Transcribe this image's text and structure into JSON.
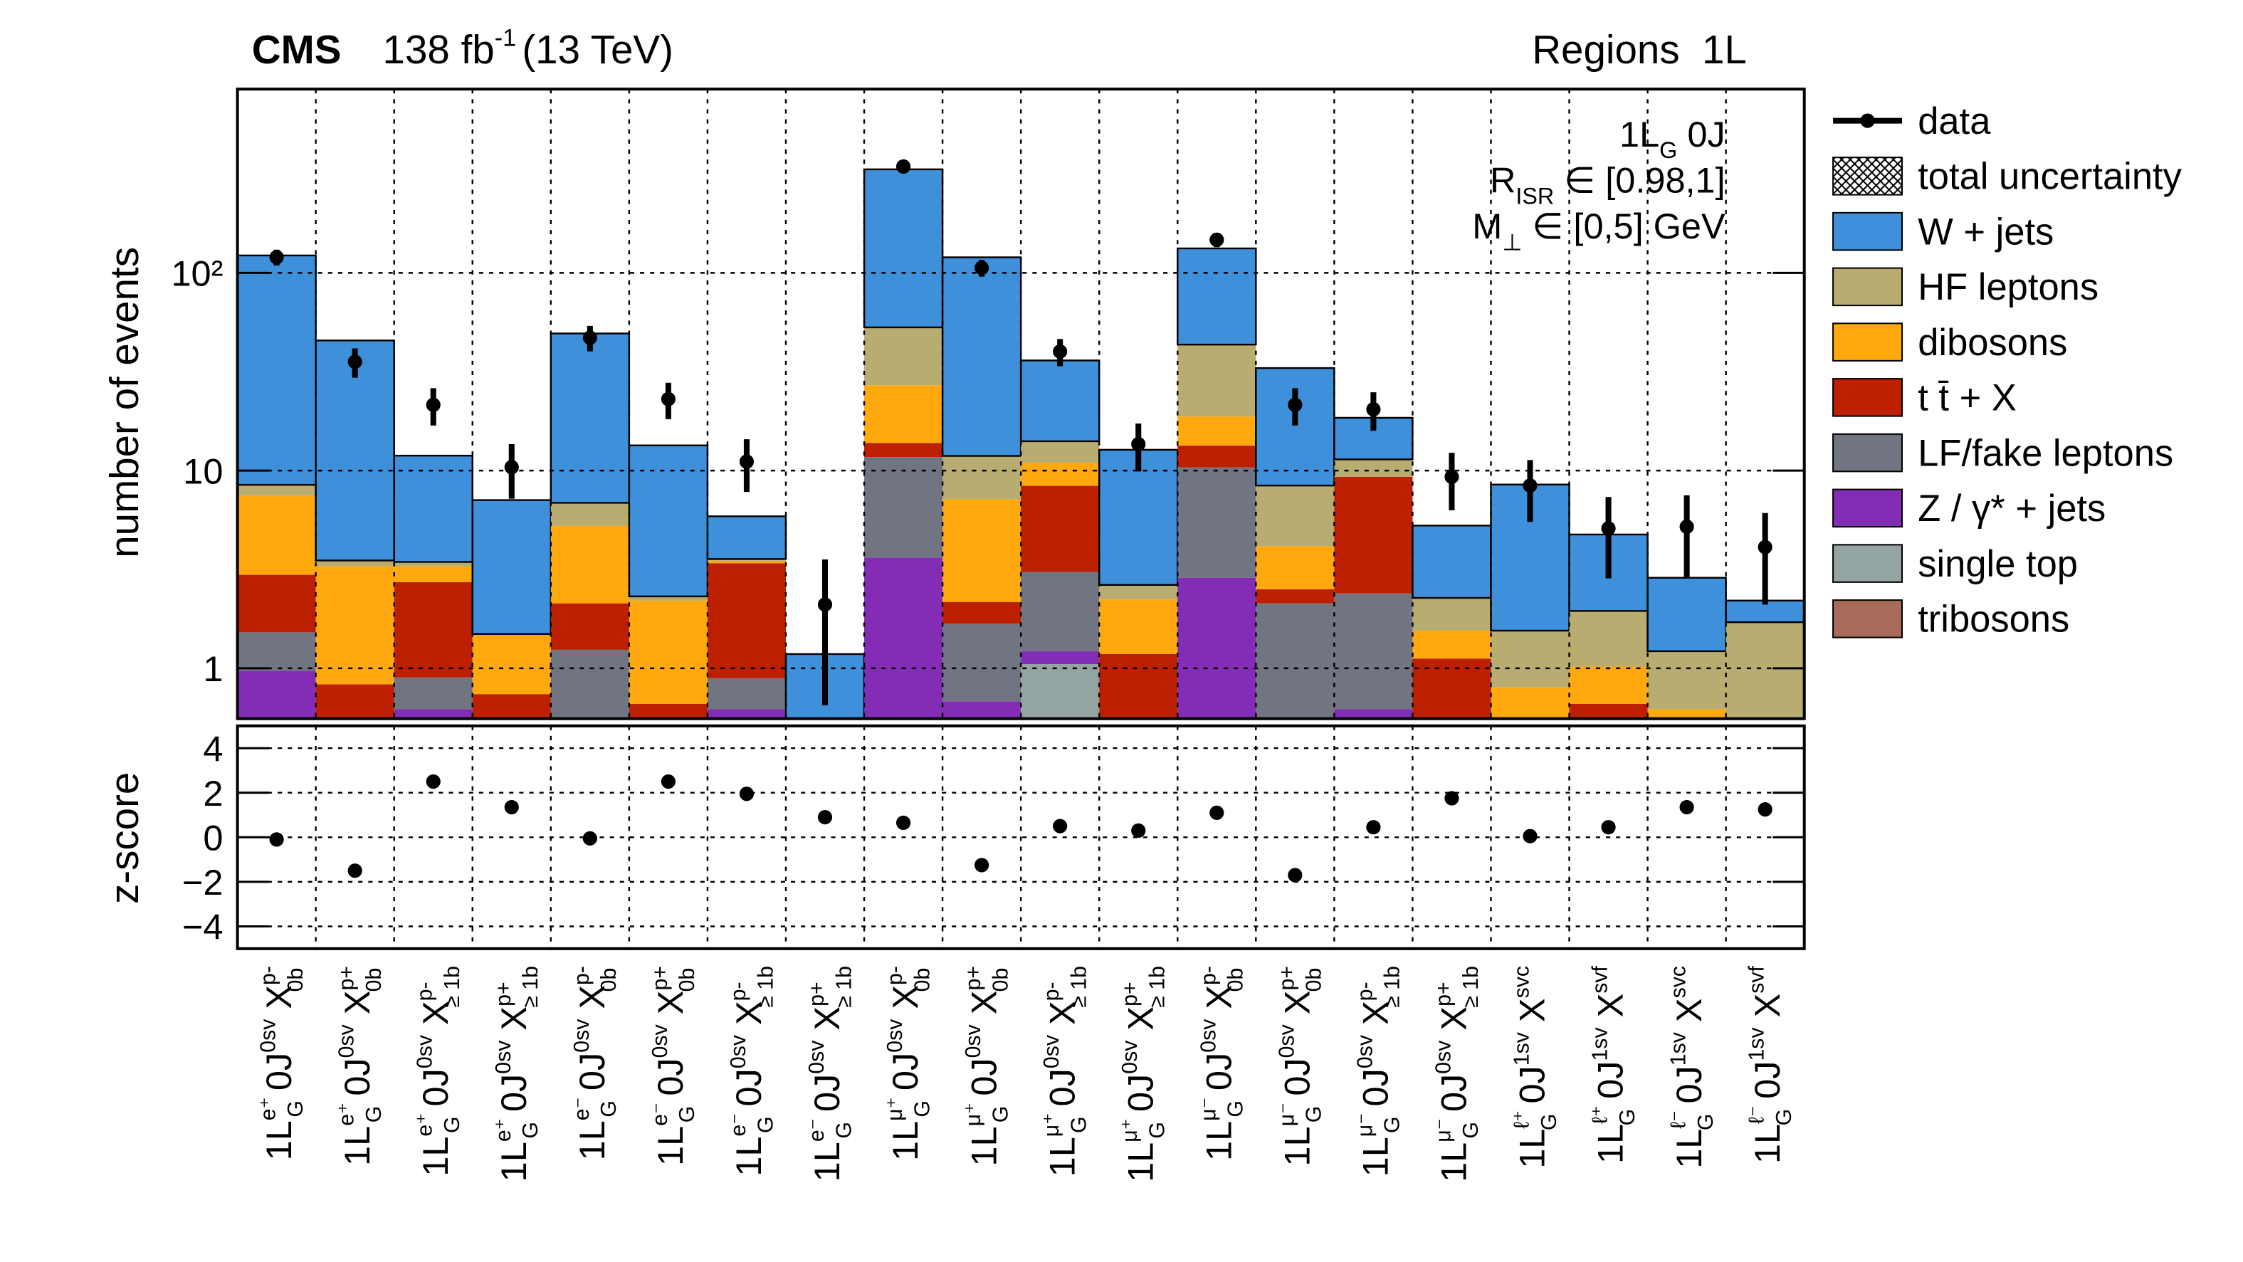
{
  "chart_data": {
    "type": "stacked_bar",
    "experiment": "CMS",
    "lumi": "138 fb",
    "lumi_exp": "-1",
    "energy": "(13 TeV)",
    "region": "Regions  1L",
    "ylabel": "number of events",
    "log_scale": true,
    "grid": true,
    "legend": "right",
    "ylim": [
      0.556,
      850
    ],
    "yticks": [
      1,
      10,
      {
        "value": 100,
        "label": "10²"
      }
    ],
    "annotations": [
      {
        "main": "1L",
        "sub": "G",
        "rest": " 0J"
      },
      {
        "main": "R",
        "sub": "ISR",
        "rest": "  ∈ [0.98,1]"
      },
      {
        "main": "M",
        "sub": "⊥",
        "rest": "  ∈ [0,5] GeV"
      }
    ],
    "category_parts": {
      "l": "1L",
      "lsub": "G",
      "j": " 0J",
      "x": " X"
    },
    "categories": [
      {
        "lepton": "e⁺",
        "sv": "0sv",
        "xsup": "p-",
        "xsub": "0b"
      },
      {
        "lepton": "e⁺",
        "sv": "0sv",
        "xsup": "p+",
        "xsub": "0b"
      },
      {
        "lepton": "e⁺",
        "sv": "0sv",
        "xsup": "p-",
        "xsub": "≥ 1b"
      },
      {
        "lepton": "e⁺",
        "sv": "0sv",
        "xsup": "p+",
        "xsub": "≥ 1b"
      },
      {
        "lepton": "e⁻",
        "sv": "0sv",
        "xsup": "p-",
        "xsub": "0b"
      },
      {
        "lepton": "e⁻",
        "sv": "0sv",
        "xsup": "p+",
        "xsub": "0b"
      },
      {
        "lepton": "e⁻",
        "sv": "0sv",
        "xsup": "p-",
        "xsub": "≥ 1b"
      },
      {
        "lepton": "e⁻",
        "sv": "0sv",
        "xsup": "p+",
        "xsub": "≥ 1b"
      },
      {
        "lepton": "μ⁺",
        "sv": "0sv",
        "xsup": "p-",
        "xsub": "0b"
      },
      {
        "lepton": "μ⁺",
        "sv": "0sv",
        "xsup": "p+",
        "xsub": "0b"
      },
      {
        "lepton": "μ⁺",
        "sv": "0sv",
        "xsup": "p-",
        "xsub": "≥ 1b"
      },
      {
        "lepton": "μ⁺",
        "sv": "0sv",
        "xsup": "p+",
        "xsub": "≥ 1b"
      },
      {
        "lepton": "μ⁻",
        "sv": "0sv",
        "xsup": "p-",
        "xsub": "0b"
      },
      {
        "lepton": "μ⁻",
        "sv": "0sv",
        "xsup": "p+",
        "xsub": "0b"
      },
      {
        "lepton": "μ⁻",
        "sv": "0sv",
        "xsup": "p-",
        "xsub": "≥ 1b"
      },
      {
        "lepton": "μ⁻",
        "sv": "0sv",
        "xsup": "p+",
        "xsub": "≥ 1b"
      },
      {
        "lepton": "ℓ⁺",
        "sv": "1sv",
        "xsup": "svc"
      },
      {
        "lepton": "ℓ⁺",
        "sv": "1sv",
        "xsup": "svf"
      },
      {
        "lepton": "ℓ⁻",
        "sv": "1sv",
        "xsup": "svc"
      },
      {
        "lepton": "ℓ⁻",
        "sv": "1sv",
        "xsup": "svf"
      }
    ],
    "series": [
      {
        "name": "W + jets",
        "color": "#3f90da",
        "values": [
          114,
          42,
          8.45,
          5.6,
          42.5,
          11.1,
          2.3,
          1.18,
          281,
          108,
          22,
          10.1,
          89.6,
          24.6,
          7.1,
          3.0,
          6.95,
          2.8,
          1.65,
          0.49
        ]
      },
      {
        "name": "HF leptons",
        "color": "#b9ac70",
        "values": [
          1.0,
          0.23,
          0.17,
          0,
          1.62,
          0.11,
          0.07,
          0,
          26,
          4.7,
          3.1,
          0.41,
          24.6,
          4.25,
          2.1,
          0.72,
          0.75,
          0.93,
          0.6,
          1.71
        ]
      },
      {
        "name": "dibosons",
        "color": "#ffa90e",
        "values": [
          4.5,
          2.45,
          0.55,
          0.75,
          3.12,
          1.54,
          0.1,
          0,
          13.2,
          5.0,
          2.6,
          1.05,
          5.4,
          1.64,
          0,
          0.43,
          0.8,
          0.36,
          0.62,
          0
        ]
      },
      {
        "name": "t t̄ + X",
        "color": "#bd1f01",
        "values": [
          1.45,
          0.83,
          1.83,
          0.74,
          0.89,
          0.66,
          2.51,
          0,
          2.1,
          0.48,
          5.3,
          1.18,
          3.0,
          0.38,
          6.9,
          1.12,
          0,
          0.66,
          0,
          0
        ]
      },
      {
        "name": "LF/fake leptons",
        "color": "#717581",
        "values": [
          0.55,
          0,
          0.28,
          0,
          1.24,
          0,
          0.27,
          0,
          8.07,
          1.0,
          1.85,
          0,
          7.5,
          2.13,
          1.77,
          0,
          0,
          0,
          0,
          0
        ]
      },
      {
        "name": "Z / γ* + jets",
        "color": "#832db6",
        "values": [
          0.97,
          0,
          0.62,
          0,
          0,
          0,
          0.62,
          0,
          3.63,
          0.68,
          0.17,
          0,
          2.87,
          0,
          0.62,
          0,
          0,
          0,
          0,
          0
        ]
      },
      {
        "name": "single top",
        "color": "#94a4a2",
        "values": [
          0,
          0,
          0,
          0,
          0,
          0,
          0,
          0,
          0,
          0,
          1.05,
          0,
          0,
          0,
          0,
          0,
          0,
          0,
          0,
          0
        ]
      },
      {
        "name": "tribosons",
        "color": "#a96b59",
        "values": [
          0,
          0,
          0,
          0,
          0,
          0,
          0,
          0,
          0,
          0,
          0,
          0,
          0,
          0,
          0,
          0,
          0,
          0,
          0,
          0
        ]
      }
    ],
    "uncertainty_label": "total uncertainty",
    "data": {
      "name": "data",
      "color": "#000000",
      "values": [
        120,
        35.5,
        21.5,
        10.4,
        47,
        23,
        11.1,
        2.1,
        345,
        106,
        40,
        13.6,
        147,
        21.5,
        20.4,
        9.3,
        8.4,
        5.1,
        5.2,
        4.1
      ],
      "errors": [
        11,
        6,
        4.6,
        3.2,
        6.9,
        4.8,
        3.3,
        1.45,
        18.6,
        10.3,
        6.3,
        3.7,
        12.1,
        4.6,
        4.5,
        3.0,
        2.9,
        2.25,
        2.3,
        2.0
      ]
    },
    "ratio": {
      "ylabel": "z-score",
      "ylim": [
        -5,
        5
      ],
      "yticks": [
        {
          "value": -4,
          "label": "−4"
        },
        {
          "value": -2,
          "label": "−2"
        },
        0,
        2,
        4
      ],
      "values": [
        -0.1,
        -1.5,
        2.5,
        1.35,
        -0.05,
        2.5,
        1.95,
        0.9,
        0.65,
        -1.25,
        0.5,
        0.3,
        1.1,
        -1.7,
        0.45,
        1.75,
        0.05,
        0.45,
        1.35,
        1.25
      ]
    }
  }
}
